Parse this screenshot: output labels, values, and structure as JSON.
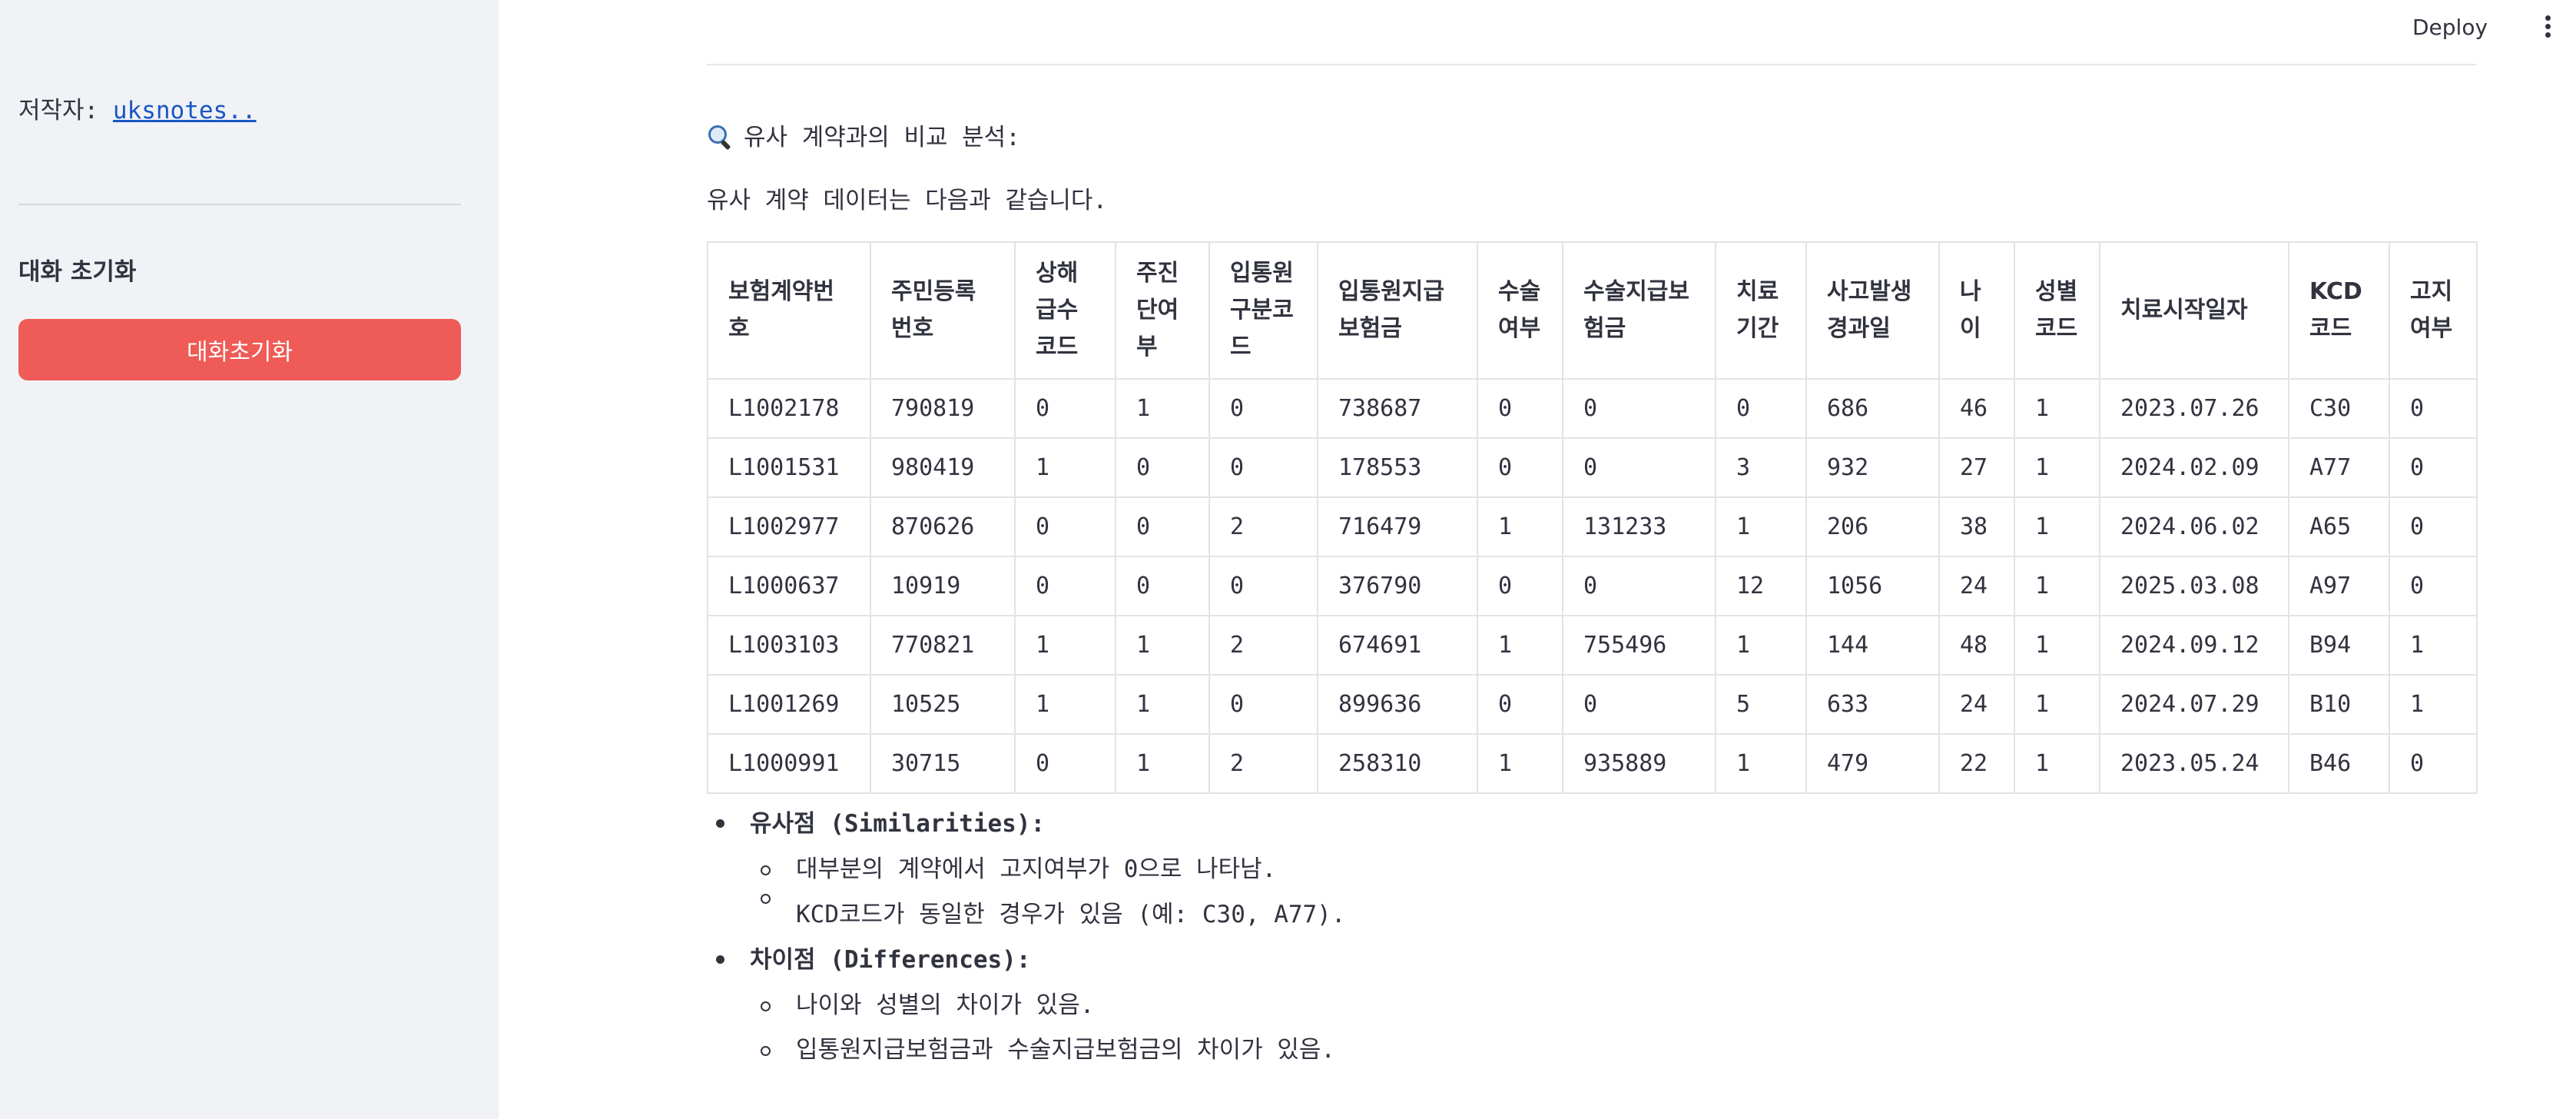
{
  "sidebar": {
    "author_label": "저작자:",
    "author_link": "uksnotes..",
    "reset_heading": "대화 초기화",
    "reset_button": "대화초기화"
  },
  "header": {
    "deploy_label": "Deploy",
    "menu_icon": "kebab-menu-icon"
  },
  "main": {
    "analysis_icon": "magnifying-glass-icon",
    "analysis_title": "유사 계약과의 비교 분석:",
    "intro_text": "유사 계약 데이터는 다음과 같습니다.",
    "table": {
      "headers": [
        "보험계약번호",
        "주민등록번호",
        "상해급수코드",
        "주진단여부",
        "입통원구분코드",
        "입통원지급보험금",
        "수술여부",
        "수술지급보험금",
        "치료기간",
        "사고발생경과일",
        "나이",
        "성별코드",
        "치료시작일자",
        "KCD코드",
        "고지여부"
      ],
      "rows": [
        [
          "L1002178",
          "790819",
          "0",
          "1",
          "0",
          "738687",
          "0",
          "0",
          "0",
          "686",
          "46",
          "1",
          "2023.07.26",
          "C30",
          "0"
        ],
        [
          "L1001531",
          "980419",
          "1",
          "0",
          "0",
          "178553",
          "0",
          "0",
          "3",
          "932",
          "27",
          "1",
          "2024.02.09",
          "A77",
          "0"
        ],
        [
          "L1002977",
          "870626",
          "0",
          "0",
          "2",
          "716479",
          "1",
          "131233",
          "1",
          "206",
          "38",
          "1",
          "2024.06.02",
          "A65",
          "0"
        ],
        [
          "L1000637",
          "10919",
          "0",
          "0",
          "0",
          "376790",
          "0",
          "0",
          "12",
          "1056",
          "24",
          "1",
          "2025.03.08",
          "A97",
          "0"
        ],
        [
          "L1003103",
          "770821",
          "1",
          "1",
          "2",
          "674691",
          "1",
          "755496",
          "1",
          "144",
          "48",
          "1",
          "2024.09.12",
          "B94",
          "1"
        ],
        [
          "L1001269",
          "10525",
          "1",
          "1",
          "0",
          "899636",
          "0",
          "0",
          "5",
          "633",
          "24",
          "1",
          "2024.07.29",
          "B10",
          "1"
        ],
        [
          "L1000991",
          "30715",
          "0",
          "1",
          "2",
          "258310",
          "1",
          "935889",
          "1",
          "479",
          "22",
          "1",
          "2023.05.24",
          "B46",
          "0"
        ]
      ]
    },
    "similarities": {
      "heading": "유사점 (Similarities):",
      "items": [
        "대부분의 계약에서 고지여부가 0으로 나타남.",
        "KCD코드가 동일한 경우가 있음 (예: C30, A77)."
      ]
    },
    "differences": {
      "heading": "차이점 (Differences):",
      "items": [
        "나이와 성별의 차이가 있음.",
        "입통원지급보험금과 수술지급보험금의 차이가 있음."
      ]
    }
  }
}
